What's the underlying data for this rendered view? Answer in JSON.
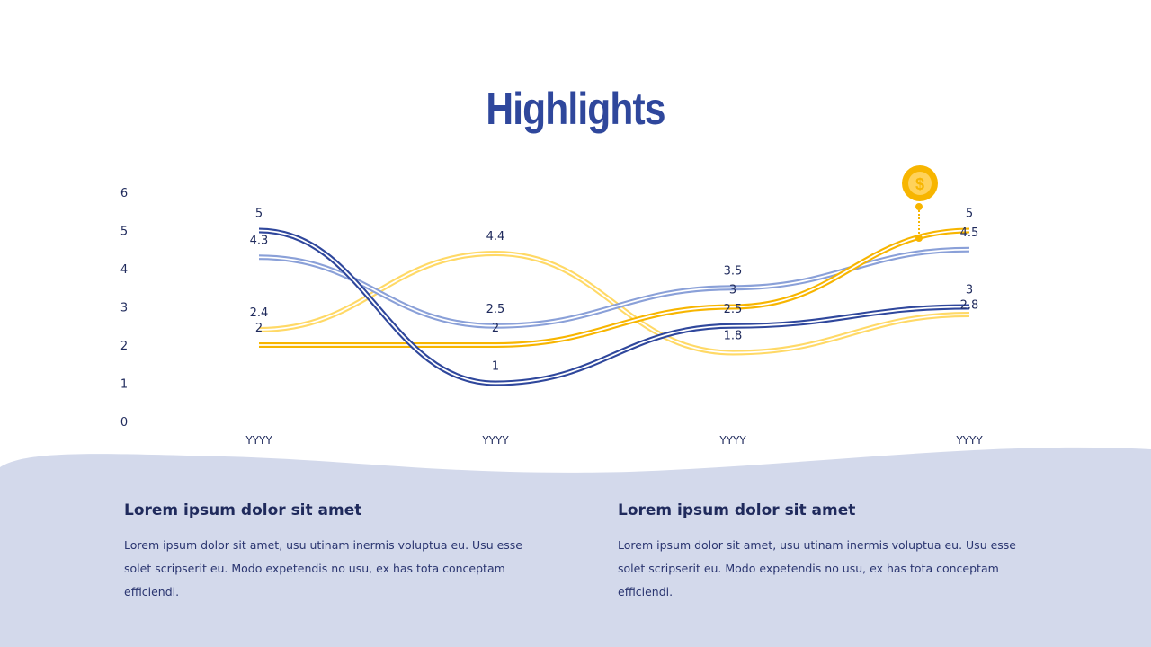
{
  "title": "Highlights",
  "chart_data": {
    "type": "line",
    "categories": [
      "YYYY",
      "YYYY",
      "YYYY",
      "YYYY"
    ],
    "ylim": [
      0,
      6
    ],
    "yticks": [
      0,
      1,
      2,
      3,
      4,
      5,
      6
    ],
    "grid": false,
    "smooth": true,
    "series": [
      {
        "values": [
          5,
          1,
          2.5,
          3
        ],
        "color": "#2f479c"
      },
      {
        "values": [
          4.3,
          2.5,
          3.5,
          4.5
        ],
        "color": "#8aa0d8"
      },
      {
        "values": [
          2,
          2,
          3,
          5
        ],
        "color": "#f7b500"
      },
      {
        "values": [
          2.4,
          4.4,
          1.8,
          2.8
        ],
        "color": "#ffd966"
      }
    ]
  },
  "marker_icon": "dollar-coin-icon",
  "columns": [
    {
      "heading": "Lorem ipsum dolor  sit amet",
      "body": "Lorem ipsum dolor sit amet, usu utinam inermis voluptua eu. Usu esse solet scripserit eu. Modo expetendis no usu, ex has tota conceptam efficiendi."
    },
    {
      "heading": "Lorem ipsum dolor  sit amet",
      "body": "Lorem ipsum dolor sit amet, usu utinam inermis voluptua eu. Usu esse solet scripserit eu. Modo expetendis no usu, ex has tota conceptam efficiendi."
    }
  ]
}
